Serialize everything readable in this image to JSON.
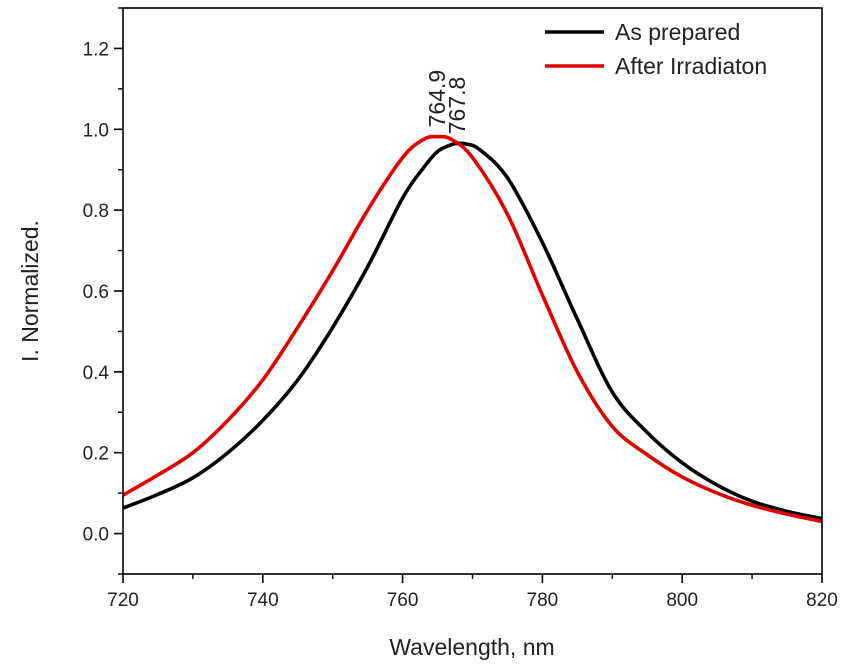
{
  "chart_data": {
    "type": "line",
    "title": "",
    "xlabel": "Wavelength, nm",
    "ylabel": "I. Normalized.",
    "xlim": [
      720,
      820
    ],
    "ylim": [
      -0.1,
      1.3
    ],
    "xticks": [
      720,
      740,
      760,
      780,
      800,
      820
    ],
    "xtick_labels": [
      "720",
      "740",
      "760",
      "780",
      "800",
      "820"
    ],
    "yticks": [
      0.0,
      0.2,
      0.4,
      0.6,
      0.8,
      1.0,
      1.2
    ],
    "ytick_labels": [
      "0.0",
      "0.2",
      "0.4",
      "0.6",
      "0.8",
      "1.0",
      "1.2"
    ],
    "grid": false,
    "legend_position": "top-right",
    "series": [
      {
        "name": "As prepared",
        "color": "#000000",
        "x": [
          720,
          725,
          730,
          735,
          740,
          745,
          750,
          755,
          760,
          763,
          765,
          767,
          768,
          769,
          771,
          775,
          780,
          785,
          790,
          795,
          800,
          805,
          810,
          815,
          820
        ],
        "y": [
          0.063,
          0.097,
          0.138,
          0.2,
          0.28,
          0.38,
          0.51,
          0.66,
          0.83,
          0.905,
          0.945,
          0.962,
          0.965,
          0.964,
          0.95,
          0.88,
          0.72,
          0.53,
          0.35,
          0.25,
          0.175,
          0.12,
          0.08,
          0.055,
          0.037
        ]
      },
      {
        "name": "After Irradiaton",
        "color": "#e00000",
        "x": [
          720,
          725,
          730,
          735,
          740,
          745,
          750,
          755,
          760,
          763,
          765,
          767,
          770,
          775,
          780,
          785,
          790,
          795,
          800,
          805,
          810,
          815,
          820
        ],
        "y": [
          0.095,
          0.145,
          0.2,
          0.28,
          0.38,
          0.51,
          0.65,
          0.8,
          0.93,
          0.975,
          0.982,
          0.975,
          0.93,
          0.79,
          0.59,
          0.4,
          0.265,
          0.195,
          0.14,
          0.1,
          0.07,
          0.048,
          0.03
        ]
      }
    ],
    "annotations": [
      {
        "text": "764.9",
        "x": 764.9,
        "y": 0.985
      },
      {
        "text": "767.8",
        "x": 767.8,
        "y": 0.968
      }
    ]
  }
}
